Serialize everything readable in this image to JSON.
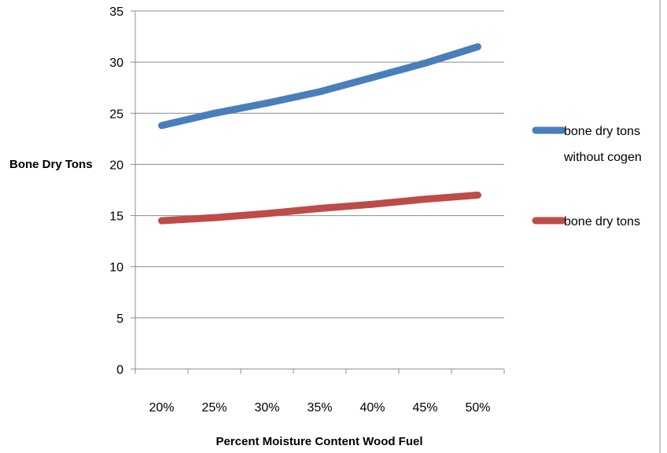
{
  "chart_data": {
    "type": "line",
    "title": "",
    "xlabel": "Percent Moisture Content Wood Fuel",
    "ylabel": "Bone Dry Tons",
    "categories": [
      "20%",
      "25%",
      "30%",
      "35%",
      "40%",
      "45%",
      "50%"
    ],
    "ylim": [
      0,
      35
    ],
    "yticks": [
      "0",
      "5",
      "10",
      "15",
      "20",
      "25",
      "30",
      "35"
    ],
    "grid": true,
    "legend_position": "right",
    "series": [
      {
        "name": "bone dry tons without cogen",
        "legend_lines": [
          "bone dry tons",
          "without cogen"
        ],
        "color": "#4A7EBB",
        "values": [
          23.8,
          25.0,
          26.0,
          27.1,
          28.5,
          29.9,
          31.5
        ]
      },
      {
        "name": "bone dry tons",
        "legend_lines": [
          "bone dry tons"
        ],
        "color": "#BE4B48",
        "values": [
          14.5,
          14.8,
          15.2,
          15.7,
          16.1,
          16.6,
          17.0
        ]
      }
    ]
  }
}
